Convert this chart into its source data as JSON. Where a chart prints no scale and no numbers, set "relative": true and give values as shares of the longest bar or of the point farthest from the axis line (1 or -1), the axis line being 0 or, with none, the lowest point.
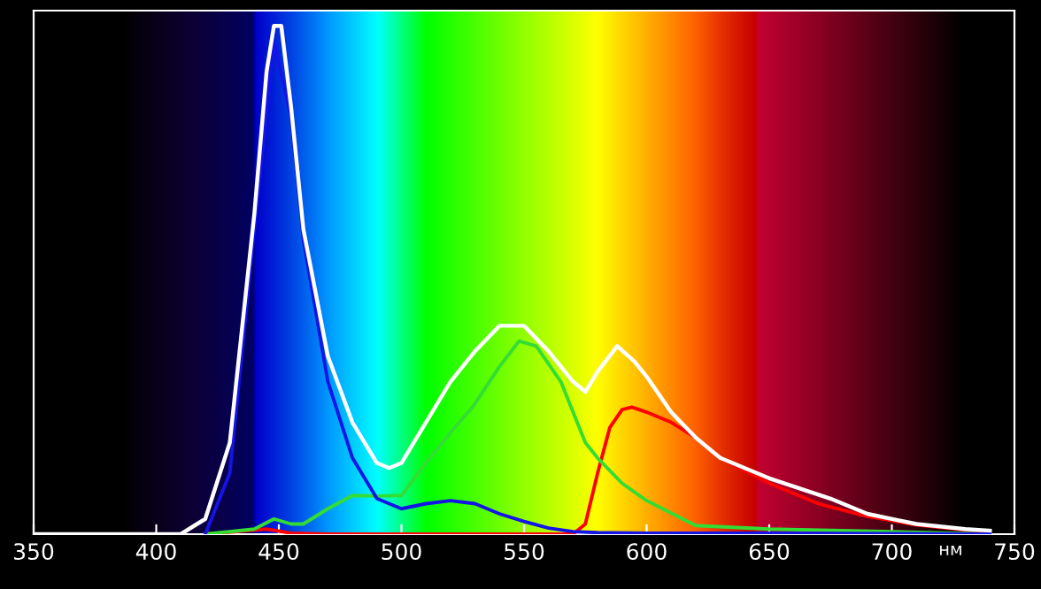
{
  "chart_data": {
    "type": "line",
    "relative": true,
    "xlabel": "нм",
    "xlim": [
      350,
      750
    ],
    "xticks": [
      350,
      400,
      450,
      500,
      550,
      600,
      650,
      700,
      750
    ],
    "grid": false,
    "legend": false,
    "marker": "none",
    "line_style": "solid",
    "series": [
      {
        "color": "#ffffff",
        "x": [
          350,
          410,
          420,
          430,
          440,
          445,
          448,
          451,
          455,
          460,
          470,
          480,
          490,
          495,
          500,
          510,
          520,
          530,
          540,
          545,
          550,
          560,
          570,
          575,
          580,
          588,
          595,
          600,
          610,
          620,
          630,
          650,
          675,
          690,
          710,
          730,
          740
        ],
        "values": [
          0,
          0,
          0.03,
          0.18,
          0.63,
          0.91,
          1,
          1,
          0.84,
          0.6,
          0.35,
          0.22,
          0.14,
          0.13,
          0.14,
          0.22,
          0.3,
          0.36,
          0.41,
          0.41,
          0.41,
          0.36,
          0.3,
          0.28,
          0.32,
          0.37,
          0.34,
          0.31,
          0.24,
          0.19,
          0.15,
          0.11,
          0.07,
          0.04,
          0.02,
          0.01,
          0.007
        ]
      },
      {
        "color": "#1414e6",
        "x": [
          420,
          430,
          440,
          448,
          455,
          460,
          470,
          480,
          490,
          500,
          510,
          520,
          530,
          540,
          550,
          560,
          570,
          580,
          600,
          650,
          700,
          740
        ],
        "values": [
          0,
          0.12,
          0.6,
          0.97,
          0.82,
          0.58,
          0.3,
          0.15,
          0.07,
          0.05,
          0.06,
          0.066,
          0.06,
          0.04,
          0.025,
          0.012,
          0.005,
          0.003,
          0.002,
          0.002,
          0.001,
          0
        ]
      },
      {
        "color": "#33dd33",
        "x": [
          420,
          440,
          448,
          455,
          460,
          470,
          480,
          490,
          500,
          510,
          520,
          529,
          540,
          548,
          555,
          565,
          575,
          580,
          590,
          600,
          620,
          650,
          700,
          740
        ],
        "values": [
          0,
          0.01,
          0.03,
          0.02,
          0.02,
          0.05,
          0.076,
          0.075,
          0.076,
          0.14,
          0.2,
          0.25,
          0.33,
          0.38,
          0.37,
          0.3,
          0.18,
          0.15,
          0.1,
          0.066,
          0.017,
          0.01,
          0.005,
          0
        ]
      },
      {
        "color": "#ff0000",
        "x": [
          420,
          445,
          455,
          470,
          570,
          575,
          580,
          585,
          590,
          594,
          600,
          610,
          620,
          630,
          650,
          670,
          690,
          710,
          730,
          740
        ],
        "values": [
          0,
          0.01,
          0.002,
          0,
          0,
          0.02,
          0.12,
          0.21,
          0.245,
          0.25,
          0.24,
          0.22,
          0.19,
          0.15,
          0.1,
          0.06,
          0.035,
          0.018,
          0.008,
          0.005
        ]
      }
    ]
  }
}
